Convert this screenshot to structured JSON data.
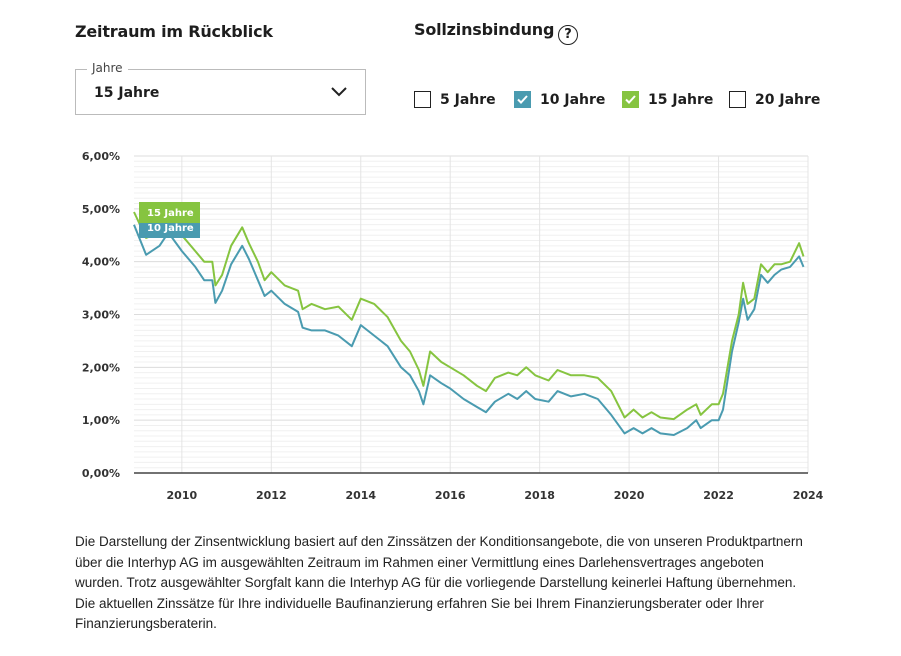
{
  "filters": {
    "period_title": "Zeitraum im Rückblick",
    "period_select": {
      "label": "Jahre",
      "value": "15 Jahre"
    },
    "fixation_title": "Sollzinsbindung",
    "help_icon": "?",
    "options": [
      {
        "label": "5 Jahre",
        "checked": false,
        "color": "#222222"
      },
      {
        "label": "10 Jahre",
        "checked": true,
        "color": "#4a9bb0"
      },
      {
        "label": "15 Jahre",
        "checked": true,
        "color": "#86c440"
      },
      {
        "label": "20 Jahre",
        "checked": false,
        "color": "#222222"
      }
    ]
  },
  "chart_data": {
    "type": "line",
    "title": "",
    "xlabel": "",
    "ylabel": "",
    "xlim": [
      2008.93,
      2024
    ],
    "ylim": [
      0,
      6
    ],
    "x_ticks": [
      "2010",
      "2012",
      "2014",
      "2016",
      "2018",
      "2020",
      "2022",
      "2024"
    ],
    "y_ticks": [
      "0,00%",
      "1,00%",
      "2,00%",
      "3,00%",
      "4,00%",
      "5,00%",
      "6,00%"
    ],
    "grid": true,
    "legend_labels": [
      "15 Jahre",
      "10 Jahre"
    ],
    "x": [
      2008.93,
      2009.2,
      2009.5,
      2009.7,
      2010.0,
      2010.3,
      2010.5,
      2010.68,
      2010.75,
      2010.9,
      2011.1,
      2011.35,
      2011.5,
      2011.7,
      2011.85,
      2012.0,
      2012.3,
      2012.6,
      2012.7,
      2012.9,
      2013.2,
      2013.5,
      2013.8,
      2014.0,
      2014.3,
      2014.6,
      2014.9,
      2015.1,
      2015.3,
      2015.4,
      2015.55,
      2015.8,
      2016.0,
      2016.3,
      2016.6,
      2016.8,
      2017.0,
      2017.3,
      2017.5,
      2017.7,
      2017.9,
      2018.2,
      2018.4,
      2018.7,
      2019.0,
      2019.3,
      2019.6,
      2019.9,
      2020.1,
      2020.3,
      2020.5,
      2020.7,
      2021.0,
      2021.3,
      2021.5,
      2021.6,
      2021.85,
      2022.0,
      2022.1,
      2022.3,
      2022.45,
      2022.55,
      2022.65,
      2022.8,
      2022.95,
      2023.1,
      2023.25,
      2023.4,
      2023.6,
      2023.8,
      2023.9
    ],
    "series": [
      {
        "name": "10 Jahre",
        "color": "#4a9bb0",
        "values": [
          4.7,
          4.13,
          4.3,
          4.55,
          4.2,
          3.9,
          3.65,
          3.65,
          3.22,
          3.45,
          3.95,
          4.3,
          4.05,
          3.65,
          3.35,
          3.45,
          3.2,
          3.05,
          2.75,
          2.7,
          2.7,
          2.6,
          2.4,
          2.8,
          2.6,
          2.4,
          2.0,
          1.85,
          1.55,
          1.3,
          1.85,
          1.7,
          1.6,
          1.4,
          1.25,
          1.15,
          1.35,
          1.5,
          1.4,
          1.55,
          1.4,
          1.35,
          1.55,
          1.45,
          1.5,
          1.4,
          1.1,
          0.75,
          0.85,
          0.75,
          0.85,
          0.75,
          0.72,
          0.85,
          1.0,
          0.85,
          1.0,
          1.0,
          1.2,
          2.3,
          2.85,
          3.3,
          2.9,
          3.1,
          3.75,
          3.6,
          3.75,
          3.85,
          3.9,
          4.1,
          3.9
        ]
      },
      {
        "name": "15 Jahre",
        "color": "#86c440",
        "values": [
          4.94,
          4.45,
          4.55,
          4.7,
          4.5,
          4.2,
          4.0,
          4.0,
          3.55,
          3.75,
          4.3,
          4.65,
          4.35,
          4.0,
          3.65,
          3.8,
          3.55,
          3.45,
          3.1,
          3.2,
          3.1,
          3.15,
          2.9,
          3.3,
          3.2,
          2.95,
          2.5,
          2.3,
          1.95,
          1.65,
          2.3,
          2.1,
          2.0,
          1.85,
          1.65,
          1.55,
          1.8,
          1.9,
          1.85,
          2.0,
          1.85,
          1.75,
          1.95,
          1.85,
          1.85,
          1.8,
          1.55,
          1.05,
          1.2,
          1.05,
          1.15,
          1.05,
          1.02,
          1.2,
          1.3,
          1.1,
          1.3,
          1.3,
          1.5,
          2.5,
          3.0,
          3.6,
          3.2,
          3.3,
          3.95,
          3.8,
          3.95,
          3.95,
          4.0,
          4.35,
          4.1
        ]
      }
    ]
  },
  "disclaimer": "Die Darstellung der Zinsentwicklung basiert auf den Zinssätzen der Konditionsangebote, die von unseren Produktpartnern über die Interhyp AG im ausgewählten Zeitraum im Rahmen einer Vermittlung eines Darlehensvertrages angeboten wurden. Trotz ausgewählter Sorgfalt kann die Interhyp AG für die vorliegende Darstellung keinerlei Haftung übernehmen. Die aktuellen Zinssätze für Ihre individuelle Baufinanzierung erfahren Sie bei Ihrem Finanzierungsberater oder Ihrer Finanzierungsberaterin."
}
